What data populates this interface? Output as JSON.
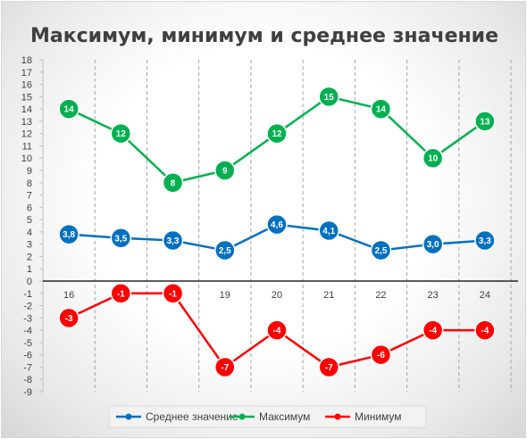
{
  "chart_data": {
    "type": "line",
    "title": "Максимум, минимум и среднее значение",
    "categories": [
      "16",
      "17",
      "18",
      "19",
      "20",
      "21",
      "22",
      "23",
      "24"
    ],
    "ylim": [
      -9,
      18
    ],
    "ytick_step": 1,
    "grid": "vertical",
    "legend_position": "bottom",
    "series": [
      {
        "name": "Среднее значение",
        "color": "#0070c0",
        "values": [
          3.8,
          3.5,
          3.3,
          2.5,
          4.6,
          4.1,
          2.5,
          3.0,
          3.3
        ],
        "labels": [
          "3,8",
          "3,5",
          "3,3",
          "2,5",
          "4,6",
          "4,1",
          "2,5",
          "3,0",
          "3,3"
        ]
      },
      {
        "name": "Максимум",
        "color": "#00b050",
        "values": [
          14,
          12,
          8,
          9,
          12,
          15,
          14,
          10,
          13
        ],
        "labels": [
          "14",
          "12",
          "8",
          "9",
          "12",
          "15",
          "14",
          "10",
          "13"
        ]
      },
      {
        "name": "Минимум",
        "color": "#ff0000",
        "values": [
          -3,
          -1,
          -1,
          -7,
          -4,
          -7,
          -6,
          -4,
          -4
        ],
        "labels": [
          "-3",
          "-1",
          "-1",
          "-7",
          "-4",
          "-7",
          "-6",
          "-4",
          "-4"
        ]
      }
    ]
  }
}
